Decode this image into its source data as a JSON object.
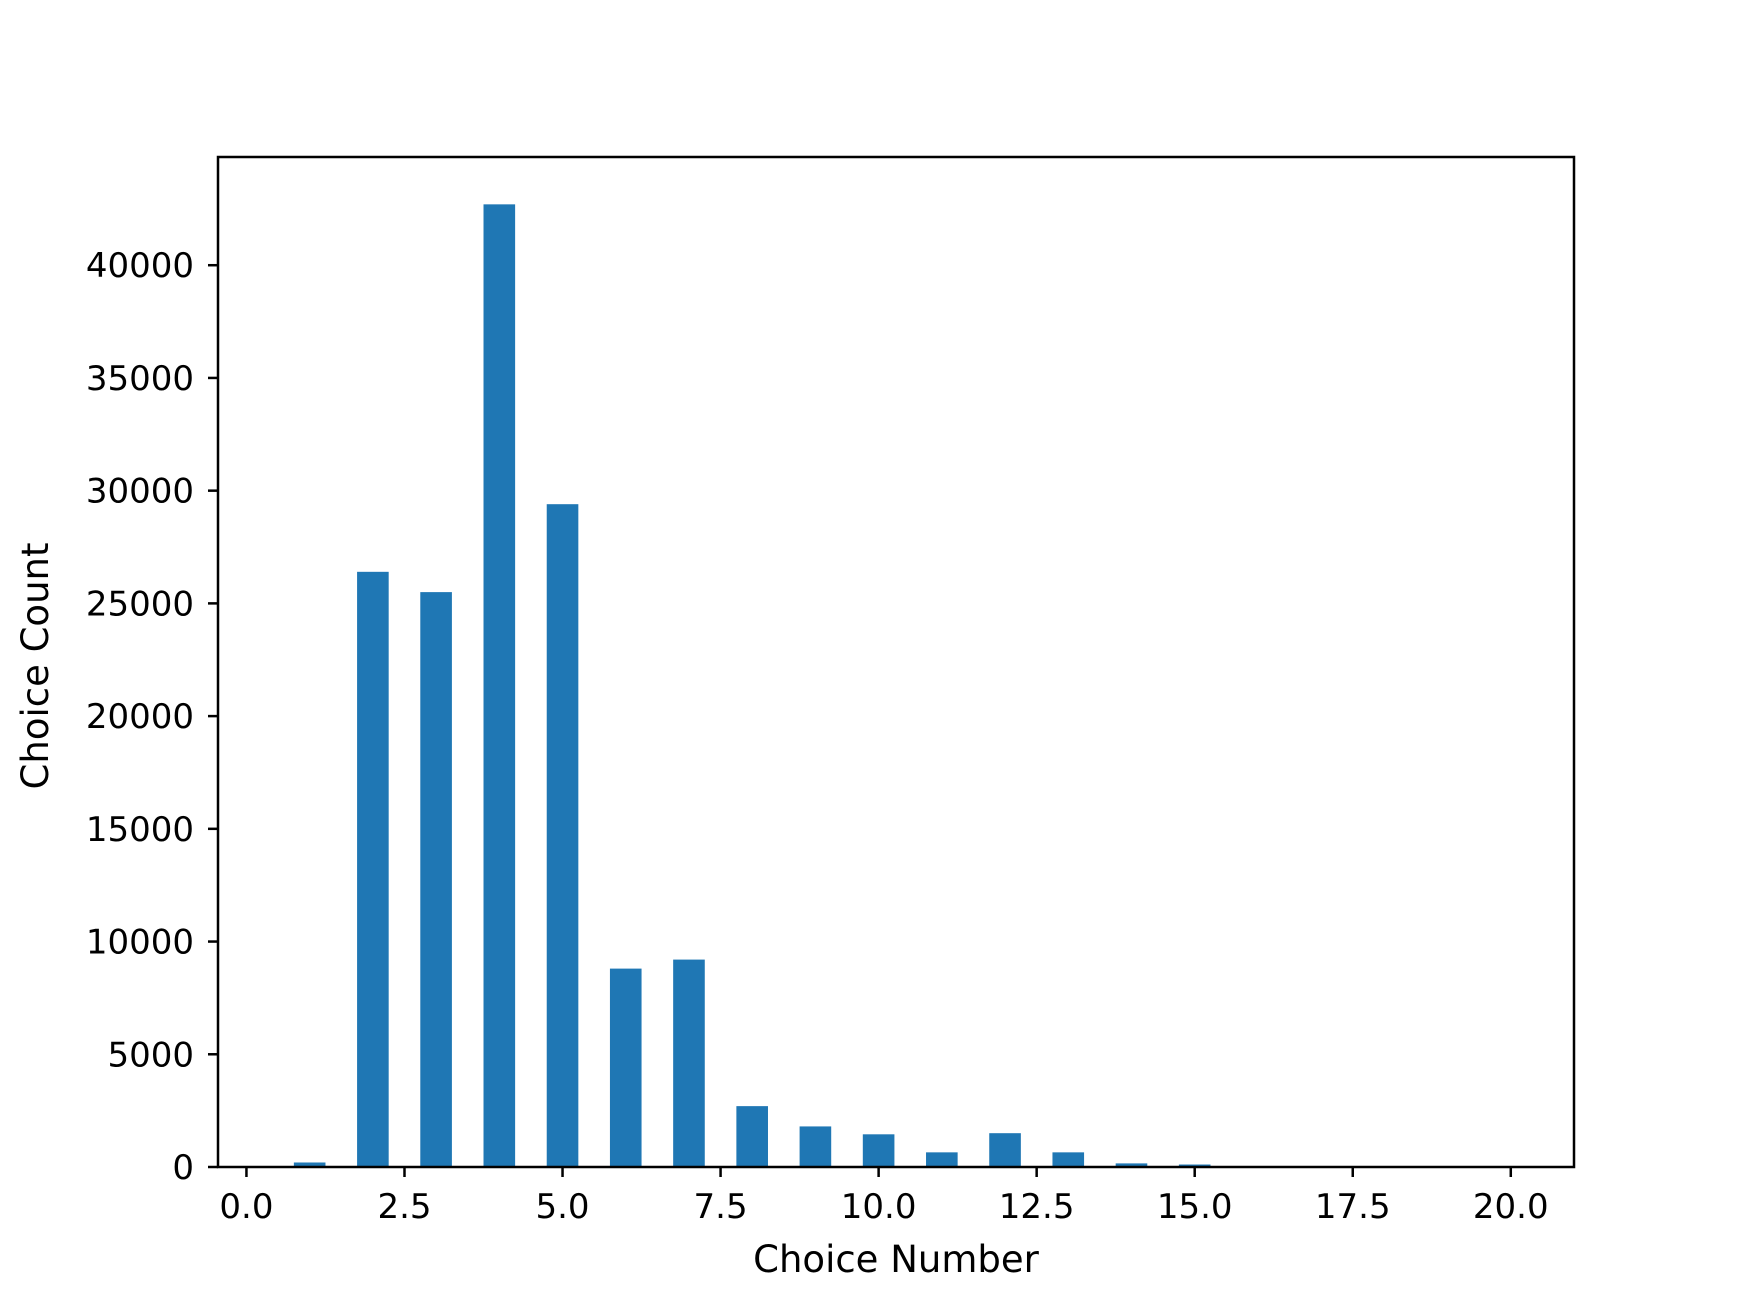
{
  "chart_data": {
    "type": "bar",
    "title": "",
    "xlabel": "Choice Number",
    "ylabel": "Choice Count",
    "xlim": [
      -0.45,
      21.0
    ],
    "ylim": [
      0,
      44800
    ],
    "xticks": [
      "0.0",
      "2.5",
      "5.0",
      "7.5",
      "10.0",
      "12.5",
      "15.0",
      "17.5",
      "20.0"
    ],
    "xtick_values": [
      0,
      2.5,
      5,
      7.5,
      10,
      12.5,
      15,
      17.5,
      20
    ],
    "yticks": [
      "0",
      "5000",
      "10000",
      "15000",
      "20000",
      "25000",
      "30000",
      "35000",
      "40000"
    ],
    "ytick_values": [
      0,
      5000,
      10000,
      15000,
      20000,
      25000,
      30000,
      35000,
      40000
    ],
    "bar_width": 0.5,
    "color": "#1f77b4",
    "grid": false,
    "x": [
      1,
      2,
      3,
      4,
      5,
      6,
      7,
      8,
      9,
      10,
      11,
      12,
      13,
      14,
      15,
      16,
      17,
      18,
      19,
      20
    ],
    "values": [
      200,
      26400,
      25500,
      42700,
      29400,
      8800,
      9200,
      2700,
      1800,
      1450,
      650,
      1500,
      650,
      160,
      110,
      40,
      20,
      10,
      5,
      3
    ]
  }
}
